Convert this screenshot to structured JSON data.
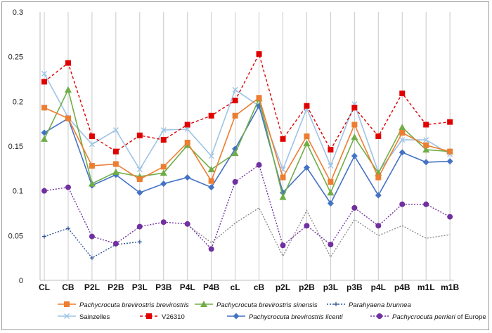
{
  "chart_data": {
    "type": "line",
    "title": "",
    "xlabel": "",
    "ylabel": "",
    "ylim": [
      0,
      0.3
    ],
    "yticks": [
      "0",
      "0.05",
      "0.1",
      "0.15",
      "0.2",
      "0.25",
      "0.3"
    ],
    "categories": [
      "CL",
      "CB",
      "P2L",
      "P2B",
      "P3L",
      "P3B",
      "P4L",
      "P4B",
      "cL",
      "cB",
      "p2L",
      "p2B",
      "p3L",
      "p3B",
      "p4L",
      "p4B",
      "m1L",
      "m1B"
    ],
    "grid": "vertical lines at each category",
    "legend_position": "bottom",
    "series": [
      {
        "name": "Pachycrocuta brevirostris brevirostris",
        "italic": true,
        "color": "#ED7D31",
        "marker": "square",
        "dash": "solid",
        "values": [
          0.193,
          0.181,
          0.128,
          0.13,
          0.113,
          0.127,
          0.154,
          0.111,
          0.184,
          0.204,
          0.115,
          0.161,
          0.11,
          0.174,
          0.115,
          0.165,
          0.151,
          0.144
        ]
      },
      {
        "name": "Pachycrocuta brevirostris sinensis",
        "italic": true,
        "color": "#70AD47",
        "marker": "triangle",
        "dash": "solid",
        "values": [
          0.158,
          0.213,
          0.108,
          0.121,
          0.116,
          0.12,
          0.151,
          0.124,
          0.142,
          0.203,
          0.093,
          0.153,
          0.098,
          0.16,
          0.12,
          0.171,
          0.146,
          0.144
        ]
      },
      {
        "name": "Parahyaena brunnea",
        "italic": true,
        "color": "#2F5597",
        "marker": "plus",
        "dash": "dotted",
        "values": [
          0.049,
          0.058,
          0.025,
          0.04,
          0.043,
          null,
          null,
          null,
          null,
          null,
          null,
          null,
          null,
          null,
          null,
          null,
          null,
          null
        ]
      },
      {
        "name": "Sainzelles",
        "italic": false,
        "color": "#9DC3E6",
        "marker": "x",
        "dash": "solid",
        "values": [
          0.231,
          0.182,
          0.152,
          0.168,
          0.124,
          0.168,
          0.169,
          0.139,
          0.213,
          0.195,
          0.124,
          0.192,
          0.128,
          0.197,
          0.121,
          0.157,
          0.157,
          0.141
        ]
      },
      {
        "name": "V26310",
        "italic": false,
        "color": "#E00000",
        "marker": "square",
        "dash": "dashed",
        "values": [
          0.222,
          0.243,
          0.161,
          0.144,
          0.162,
          0.157,
          0.174,
          0.184,
          0.201,
          0.253,
          0.158,
          0.195,
          0.146,
          0.193,
          0.161,
          0.209,
          0.174,
          0.177
        ]
      },
      {
        "name": "Pachycrocuta brevirostris licenti",
        "italic": true,
        "color": "#4472C4",
        "marker": "diamond",
        "dash": "solid",
        "values": [
          0.165,
          0.181,
          0.106,
          0.118,
          0.098,
          0.108,
          0.115,
          0.104,
          0.147,
          0.195,
          0.098,
          0.126,
          0.086,
          0.139,
          0.095,
          0.143,
          0.132,
          0.133
        ]
      },
      {
        "name": "Pachycrocuta perrieri",
        "name_suffix": " of Europe",
        "italic": true,
        "color": "#7030A0",
        "marker": "circle",
        "dash": "dotted",
        "values": [
          0.1,
          0.104,
          0.049,
          0.041,
          0.06,
          0.065,
          0.063,
          0.035,
          0.11,
          0.129,
          0.039,
          0.061,
          0.04,
          0.081,
          0.061,
          0.085,
          0.085,
          0.071
        ]
      },
      {
        "name": "",
        "italic": false,
        "color": "#8C8C8C",
        "marker": "none",
        "dash": "dotted",
        "in_legend": false,
        "values": [
          null,
          null,
          null,
          null,
          null,
          null,
          0.062,
          0.042,
          0.064,
          0.081,
          0.027,
          0.078,
          0.026,
          0.068,
          0.05,
          0.061,
          0.047,
          0.051
        ]
      }
    ]
  }
}
